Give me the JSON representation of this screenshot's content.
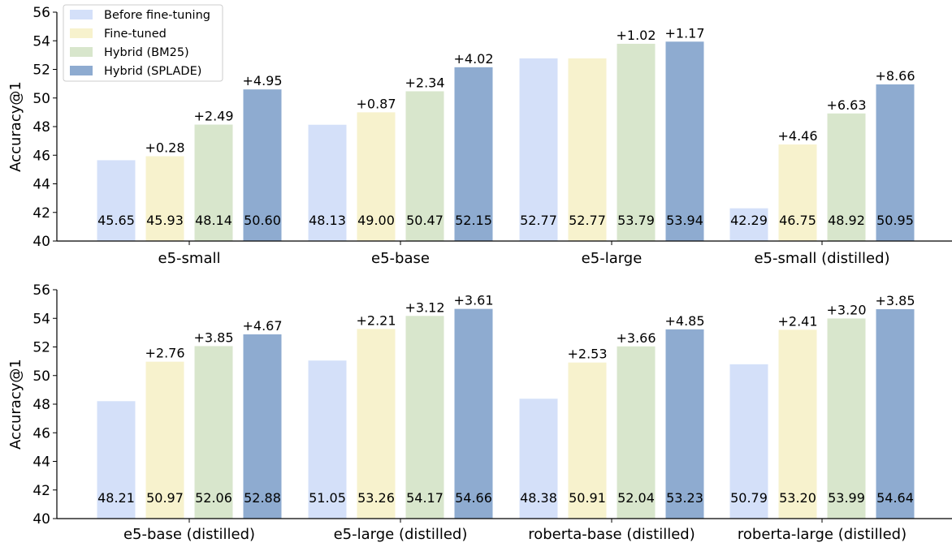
{
  "chart_data": [
    {
      "type": "bar",
      "ylabel": "Accuracy@1",
      "ylim": [
        40,
        56
      ],
      "yticks": [
        40,
        42,
        44,
        46,
        48,
        50,
        52,
        54,
        56
      ],
      "categories": [
        "e5-small",
        "e5-base",
        "e5-large",
        "e5-small (distilled)"
      ],
      "series": [
        {
          "name": "Before fine-tuning",
          "values": [
            45.65,
            48.13,
            52.77,
            42.29
          ],
          "value_labels": [
            "45.65",
            "48.13",
            "52.77",
            "42.29"
          ],
          "delta_labels": [
            "",
            "",
            "",
            ""
          ]
        },
        {
          "name": "Fine-tuned",
          "values": [
            45.93,
            49.0,
            52.77,
            46.75
          ],
          "value_labels": [
            "45.93",
            "49.00",
            "52.77",
            "46.75"
          ],
          "delta_labels": [
            "+0.28",
            "+0.87",
            "",
            "+4.46"
          ]
        },
        {
          "name": "Hybrid (BM25)",
          "values": [
            48.14,
            50.47,
            53.79,
            48.92
          ],
          "value_labels": [
            "48.14",
            "50.47",
            "53.79",
            "48.92"
          ],
          "delta_labels": [
            "+2.49",
            "+2.34",
            "+1.02",
            "+6.63"
          ]
        },
        {
          "name": "Hybrid (SPLADE)",
          "values": [
            50.6,
            52.15,
            53.94,
            50.95
          ],
          "value_labels": [
            "50.60",
            "52.15",
            "53.94",
            "50.95"
          ],
          "delta_labels": [
            "+4.95",
            "+4.02",
            "+1.17",
            "+8.66"
          ]
        }
      ],
      "legend": "top-left",
      "grid": false
    },
    {
      "type": "bar",
      "ylabel": "Accuracy@1",
      "ylim": [
        40,
        56
      ],
      "yticks": [
        40,
        42,
        44,
        46,
        48,
        50,
        52,
        54,
        56
      ],
      "categories": [
        "e5-base (distilled)",
        "e5-large (distilled)",
        "roberta-base (distilled)",
        "roberta-large (distilled)"
      ],
      "series": [
        {
          "name": "Before fine-tuning",
          "values": [
            48.21,
            51.05,
            48.38,
            50.79
          ],
          "value_labels": [
            "48.21",
            "51.05",
            "48.38",
            "50.79"
          ],
          "delta_labels": [
            "",
            "",
            "",
            ""
          ]
        },
        {
          "name": "Fine-tuned",
          "values": [
            50.97,
            53.26,
            50.91,
            53.2
          ],
          "value_labels": [
            "50.97",
            "53.26",
            "50.91",
            "53.20"
          ],
          "delta_labels": [
            "+2.76",
            "+2.21",
            "+2.53",
            "+2.41"
          ]
        },
        {
          "name": "Hybrid (BM25)",
          "values": [
            52.06,
            54.17,
            52.04,
            53.99
          ],
          "value_labels": [
            "52.06",
            "54.17",
            "52.04",
            "53.99"
          ],
          "delta_labels": [
            "+3.85",
            "+3.12",
            "+3.66",
            "+3.20"
          ]
        },
        {
          "name": "Hybrid (SPLADE)",
          "values": [
            52.88,
            54.66,
            53.23,
            54.64
          ],
          "value_labels": [
            "52.88",
            "54.66",
            "53.23",
            "54.64"
          ],
          "delta_labels": [
            "+4.67",
            "+3.61",
            "+4.85",
            "+3.85"
          ]
        }
      ],
      "grid": false
    }
  ],
  "legend_entries": [
    "Before fine-tuning",
    "Fine-tuned",
    "Hybrid (BM25)",
    "Hybrid (SPLADE)"
  ],
  "colors": {
    "Before fine-tuning": "#d4e0f9",
    "Fine-tuned": "#f7f2cd",
    "Hybrid (BM25)": "#d8e6cc",
    "Hybrid (SPLADE)": "#8eabd0"
  }
}
